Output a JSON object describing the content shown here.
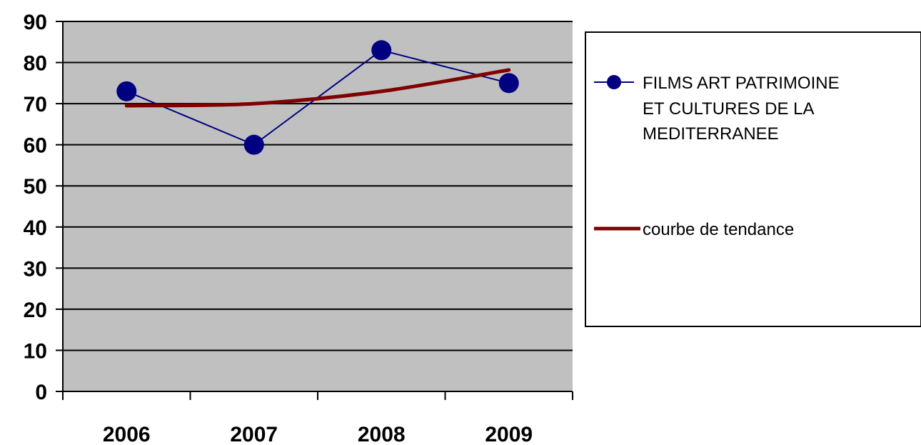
{
  "chart_data": {
    "type": "line",
    "categories": [
      "2006",
      "2007",
      "2008",
      "2009"
    ],
    "series": [
      {
        "name": " FILMS ART PATRIMOINE ET CULTURES DE LA MEDITERRANEE",
        "values": [
          73,
          60,
          83,
          75
        ],
        "color": "#000080",
        "marker": "circle"
      },
      {
        "name": "courbe de tendance",
        "values": [
          69.5,
          70,
          73,
          78.2
        ],
        "color": "#800000",
        "style": "smooth trend line"
      }
    ],
    "title": "",
    "xlabel": "",
    "ylabel": "",
    "ylim": [
      0,
      90
    ],
    "yticks": [
      "0",
      "10",
      "20",
      "30",
      "40",
      "50",
      "60",
      "70",
      "80",
      "90"
    ],
    "grid": "horizontal major gridlines",
    "plot_background": "#c0c0c0",
    "legend_position": "right",
    "legend_entries": [
      {
        "lines": [
          " FILMS ART PATRIMOINE",
          "ET CULTURES DE LA",
          "MEDITERRANEE"
        ],
        "symbol": "line-with-circle-marker",
        "color": "#000080"
      },
      {
        "lines": [
          "courbe de tendance"
        ],
        "symbol": "thick-line",
        "color": "#800000"
      }
    ]
  }
}
